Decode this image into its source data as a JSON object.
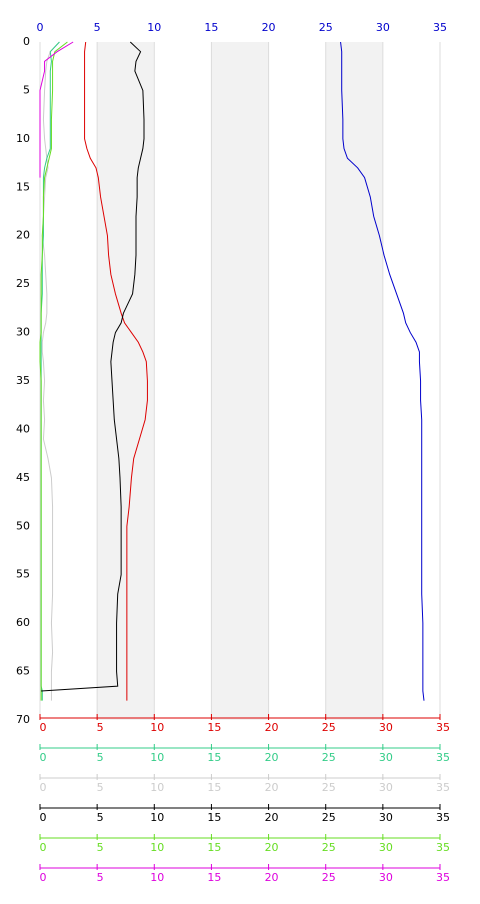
{
  "chart_data": {
    "type": "line",
    "y": [
      0,
      1,
      2,
      3,
      5,
      8,
      10,
      11,
      12,
      13,
      14,
      16,
      18,
      20,
      22,
      24,
      26,
      28,
      29,
      30,
      31,
      32,
      33,
      35,
      37,
      39,
      41,
      43,
      45,
      48,
      50,
      55,
      57,
      60,
      63,
      65,
      66.5,
      67,
      68
    ],
    "ylim": [
      0,
      70
    ],
    "yticks": [
      0,
      5,
      10,
      15,
      20,
      25,
      30,
      35,
      40,
      45,
      50,
      55,
      60,
      65,
      70
    ],
    "shaded": [
      [
        5,
        10
      ],
      [
        15,
        20
      ],
      [
        25,
        30
      ]
    ],
    "grid": true,
    "axes": [
      {
        "position": "top",
        "color": "#0000cc",
        "xlim": [
          0,
          35
        ],
        "xticks": [
          0,
          5,
          10,
          15,
          20,
          25,
          30,
          35
        ]
      },
      {
        "position": "bottom",
        "color": "#dd0000",
        "xlim": [
          0,
          35
        ],
        "xticks": [
          0,
          5,
          10,
          15,
          20,
          25,
          30,
          35
        ]
      },
      {
        "position": "bottom",
        "color": "#33cc88",
        "xlim": [
          0,
          35
        ],
        "xticks": [
          0,
          5,
          10,
          15,
          20,
          25,
          30,
          35
        ]
      },
      {
        "position": "bottom",
        "color": "#cccccc",
        "xlim": [
          0,
          35
        ],
        "xticks": [
          0,
          5,
          10,
          15,
          20,
          25,
          30,
          35
        ]
      },
      {
        "position": "bottom",
        "color": "#000000",
        "xlim": [
          0,
          35
        ],
        "xticks": [
          0,
          5,
          10,
          15,
          20,
          25,
          30,
          35
        ]
      },
      {
        "position": "bottom",
        "color": "#66dd22",
        "xlim": [
          0,
          35
        ],
        "xticks": [
          0,
          5,
          10,
          15,
          20,
          25,
          30,
          35
        ]
      },
      {
        "position": "bottom",
        "color": "#dd00dd",
        "xlim": [
          0,
          35
        ],
        "xticks": [
          0,
          5,
          10,
          15,
          20,
          25,
          30,
          35
        ]
      }
    ],
    "series": [
      {
        "color": "#0000cc",
        "axis": 0,
        "values": [
          26.3,
          26.4,
          26.4,
          26.4,
          26.4,
          26.5,
          26.5,
          26.6,
          26.9,
          27.8,
          28.4,
          28.9,
          29.2,
          29.7,
          30.1,
          30.6,
          31.2,
          31.8,
          32.0,
          32.4,
          32.9,
          33.2,
          33.2,
          33.3,
          33.3,
          33.4,
          33.4,
          33.4,
          33.4,
          33.4,
          33.4,
          33.4,
          33.4,
          33.5,
          33.5,
          33.5,
          33.5,
          33.5,
          33.6
        ]
      },
      {
        "color": "#dd0000",
        "axis": 1,
        "values": [
          4.0,
          3.9,
          3.9,
          3.9,
          3.9,
          3.9,
          3.9,
          4.1,
          4.4,
          4.9,
          5.1,
          5.3,
          5.6,
          5.9,
          6.0,
          6.2,
          6.6,
          7.1,
          7.4,
          8.0,
          8.6,
          9.0,
          9.3,
          9.4,
          9.4,
          9.2,
          8.7,
          8.2,
          8.0,
          7.8,
          7.6,
          7.6,
          7.6,
          7.6,
          7.6,
          7.6,
          7.6,
          7.6,
          7.6
        ]
      },
      {
        "color": "#33cc88",
        "axis": 2,
        "values": [
          1.7,
          0.9,
          1.0,
          0.9,
          0.9,
          0.9,
          0.9,
          0.9,
          0.6,
          0.4,
          0.3,
          0.3,
          0.3,
          0.3,
          0.2,
          0.2,
          0.2,
          0.1,
          0.1,
          0.1,
          0.1,
          0.1,
          0.1,
          0.1,
          0.1,
          0.1,
          0.1,
          0.1,
          0.1,
          0.1,
          0.1,
          0.1,
          0.1,
          0.1,
          0.1,
          0.1,
          0.1,
          0.2,
          0.2
        ]
      },
      {
        "color": "#cccccc",
        "axis": 3,
        "values": [
          1.7,
          0.9,
          0.6,
          0.5,
          0.4,
          0.3,
          0.4,
          0.5,
          0.6,
          0.7,
          0.5,
          0.4,
          0.3,
          0.2,
          0.4,
          0.5,
          0.6,
          0.6,
          0.5,
          0.3,
          0.2,
          0.2,
          0.3,
          0.4,
          0.3,
          0.4,
          0.3,
          0.7,
          1.0,
          1.1,
          1.1,
          1.1,
          1.1,
          1.0,
          1.1,
          1.0,
          1.0,
          1.0,
          1.0
        ]
      },
      {
        "color": "#000000",
        "axis": 4,
        "values": [
          7.9,
          8.8,
          8.4,
          8.3,
          9.0,
          9.1,
          9.1,
          9.0,
          8.8,
          8.6,
          8.5,
          8.5,
          8.4,
          8.4,
          8.4,
          8.3,
          8.1,
          7.3,
          7.1,
          6.6,
          6.4,
          6.3,
          6.2,
          6.3,
          6.4,
          6.5,
          6.7,
          6.9,
          7.0,
          7.1,
          7.1,
          7.1,
          6.8,
          6.7,
          6.7,
          6.7,
          6.8,
          0.1,
          null
        ]
      },
      {
        "color": "#66dd22",
        "axis": 5,
        "values": [
          2.4,
          1.3,
          1.1,
          1.1,
          1.1,
          1.0,
          1.0,
          1.0,
          0.8,
          0.6,
          0.4,
          0.3,
          0.3,
          0.2,
          0.2,
          0.1,
          0.1,
          0.1,
          0.1,
          0.1,
          0.0,
          0.0,
          0.0,
          0.1,
          0.1,
          0.1,
          0.1,
          0.1,
          0.1,
          0.1,
          0.1,
          0.1,
          0.1,
          0.1,
          0.1,
          0.1,
          0.1,
          0.1,
          0.1
        ]
      },
      {
        "color": "#dd00dd",
        "axis": 6,
        "values": [
          2.9,
          1.5,
          0.4,
          0.4,
          0.0,
          0.0,
          0.0,
          0.0,
          0.0,
          0.0,
          0.0,
          null,
          null,
          null,
          null,
          null,
          null,
          null,
          null,
          null,
          null,
          null,
          null,
          null,
          null,
          null,
          null,
          null,
          null,
          null,
          null,
          null,
          null,
          null,
          null,
          null,
          null,
          null,
          null
        ]
      }
    ]
  }
}
